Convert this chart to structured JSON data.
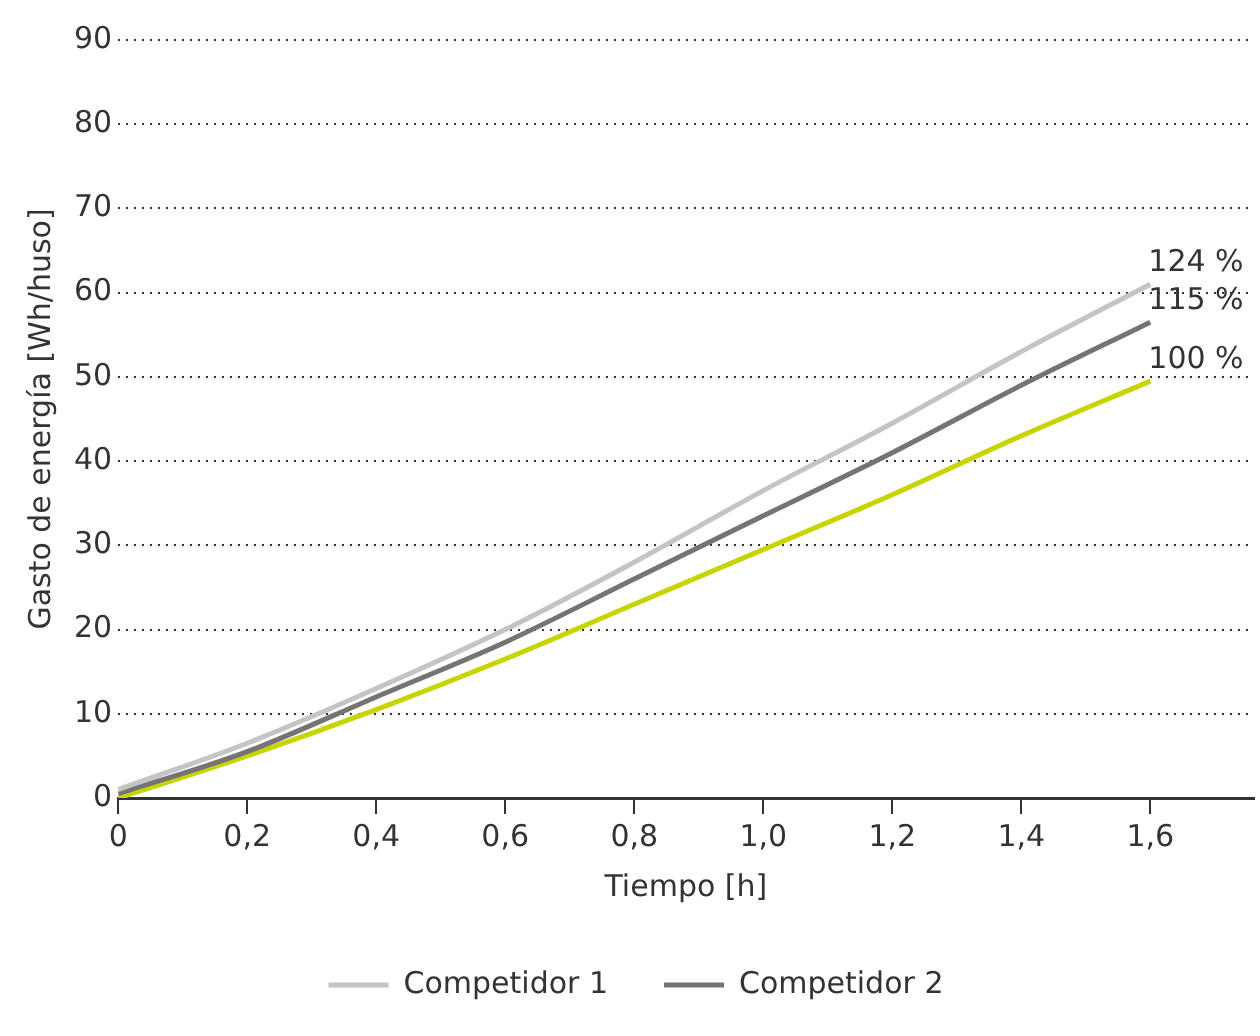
{
  "chart_data": {
    "type": "line",
    "xlabel": "Tiempo [h]",
    "ylabel": "Gasto de energía [Wh/huso]",
    "x": [
      0,
      0.2,
      0.4,
      0.6,
      0.8,
      1.0,
      1.2,
      1.4,
      1.6
    ],
    "series": [
      {
        "name": "Competidor 1",
        "color": "#c4c4c4",
        "values": [
          1,
          6.5,
          13,
          20,
          28,
          36.5,
          44.5,
          53,
          61
        ]
      },
      {
        "name": "Competidor 2",
        "color": "#747474",
        "values": [
          0.5,
          5.5,
          12,
          18.5,
          26,
          33.5,
          41,
          49,
          56.5
        ]
      },
      {
        "color": "#c8d400",
        "values": [
          0,
          5,
          10.5,
          16.5,
          23,
          29.5,
          36,
          43,
          49.5
        ]
      }
    ],
    "xlim": [
      0,
      1.76
    ],
    "ylim": [
      0,
      90
    ],
    "xticks": [
      0,
      {
        "value": 0.2,
        "label": "0,2"
      },
      {
        "value": 0.4,
        "label": "0,4"
      },
      {
        "value": 0.6,
        "label": "0,6"
      },
      {
        "value": 0.8,
        "label": "0,8"
      },
      {
        "value": 1.0,
        "label": "1,0"
      },
      {
        "value": 1.2,
        "label": "1,2"
      },
      {
        "value": 1.4,
        "label": "1,4"
      },
      {
        "value": 1.6,
        "label": "1,6"
      }
    ],
    "yticks": [
      0,
      10,
      20,
      30,
      40,
      50,
      60,
      70,
      80,
      90
    ],
    "annotations": [
      "124 %",
      "115 %",
      "100 %"
    ],
    "grid": "y",
    "legend": "bottom",
    "marker": "none",
    "line_style": "solid"
  }
}
